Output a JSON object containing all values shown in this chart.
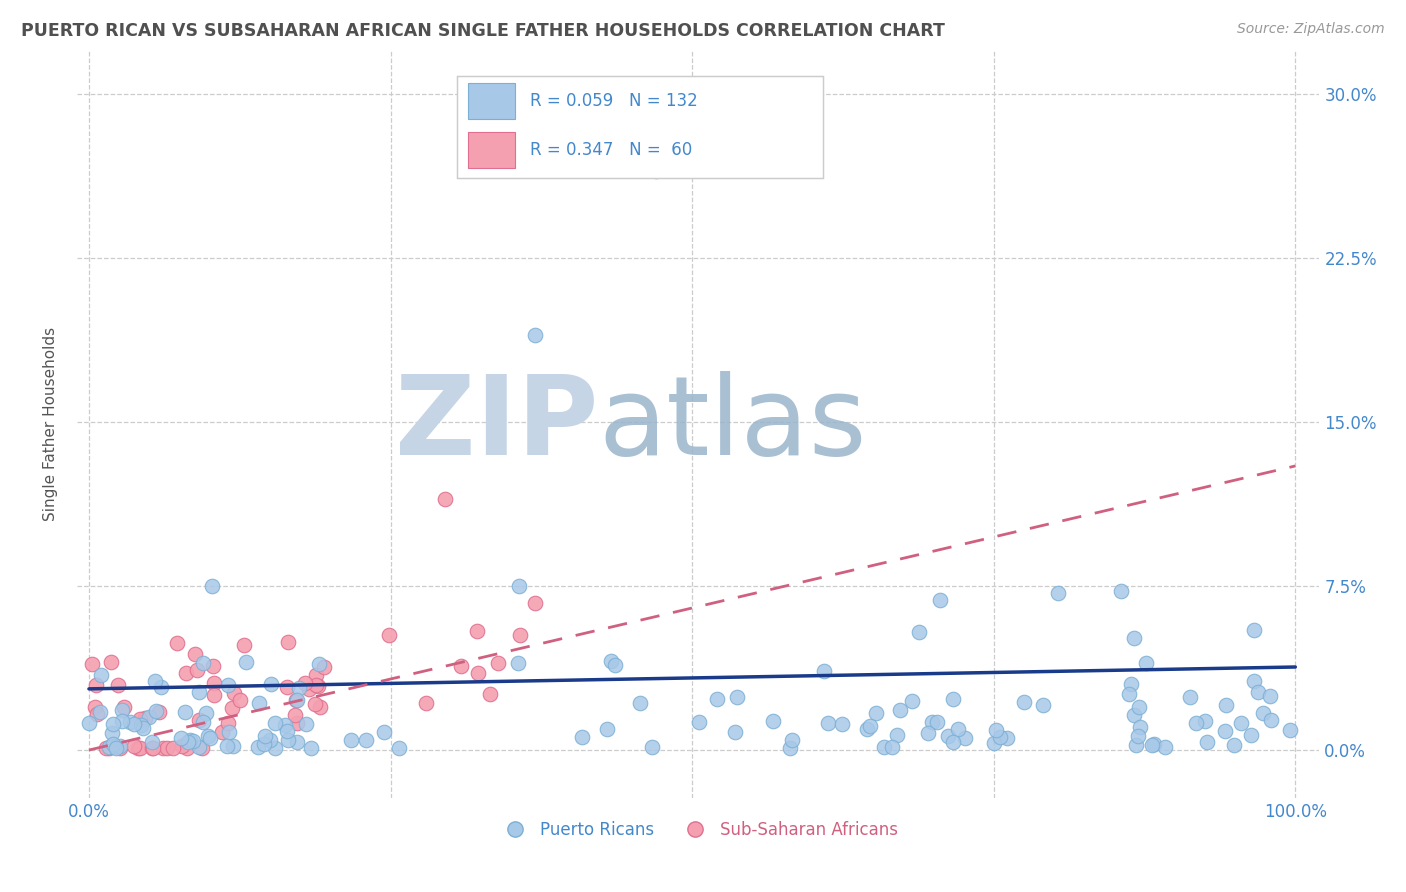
{
  "title": "PUERTO RICAN VS SUBSAHARAN AFRICAN SINGLE FATHER HOUSEHOLDS CORRELATION CHART",
  "source": "Source: ZipAtlas.com",
  "ylabel": "Single Father Households",
  "legend_r_blue": "R = 0.059",
  "legend_n_blue": "N = 132",
  "legend_r_pink": "R = 0.347",
  "legend_n_pink": "N =  60",
  "blue_color": "#a8c8e8",
  "pink_color": "#f4a0b0",
  "blue_edge": "#7bafd4",
  "pink_edge": "#e07090",
  "line_blue": "#1a3a8a",
  "line_pink": "#d06080",
  "watermark_zip_color": "#c5d5e5",
  "watermark_atlas_color": "#9ab5cc",
  "background_color": "#ffffff",
  "grid_color": "#cccccc",
  "title_color": "#505050",
  "tick_color": "#4488cc",
  "source_color": "#999999",
  "legend_text_color": "#4488cc",
  "legend_box_edge": "#cccccc"
}
